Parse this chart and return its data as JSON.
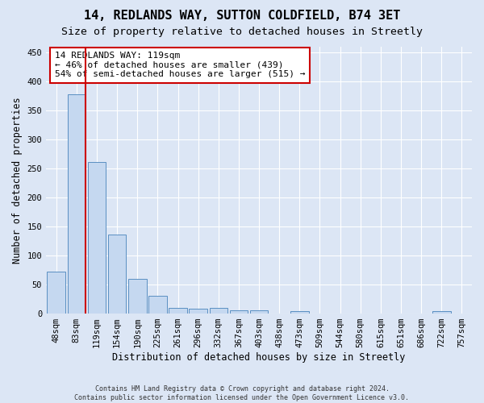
{
  "title": "14, REDLANDS WAY, SUTTON COLDFIELD, B74 3ET",
  "subtitle": "Size of property relative to detached houses in Streetly",
  "xlabel": "Distribution of detached houses by size in Streetly",
  "ylabel": "Number of detached properties",
  "footer_line1": "Contains HM Land Registry data © Crown copyright and database right 2024.",
  "footer_line2": "Contains public sector information licensed under the Open Government Licence v3.0.",
  "bar_labels": [
    "48sqm",
    "83sqm",
    "119sqm",
    "154sqm",
    "190sqm",
    "225sqm",
    "261sqm",
    "296sqm",
    "332sqm",
    "367sqm",
    "403sqm",
    "438sqm",
    "473sqm",
    "509sqm",
    "544sqm",
    "580sqm",
    "615sqm",
    "651sqm",
    "686sqm",
    "722sqm",
    "757sqm"
  ],
  "bar_values": [
    72,
    378,
    261,
    136,
    60,
    30,
    10,
    9,
    10,
    6,
    5,
    0,
    4,
    0,
    0,
    0,
    0,
    0,
    0,
    4,
    0
  ],
  "bar_color": "#c5d8f0",
  "bar_edge_color": "#5a8fc2",
  "vline_x_index": 1,
  "vline_color": "#cc0000",
  "annotation_text": "14 REDLANDS WAY: 119sqm\n← 46% of detached houses are smaller (439)\n54% of semi-detached houses are larger (515) →",
  "annotation_box_color": "#ffffff",
  "annotation_box_edge": "#cc0000",
  "ylim": [
    0,
    460
  ],
  "yticks": [
    0,
    50,
    100,
    150,
    200,
    250,
    300,
    350,
    400,
    450
  ],
  "bg_color": "#dce6f5",
  "plot_bg_color": "#dce6f5",
  "grid_color": "#ffffff",
  "title_fontsize": 11,
  "subtitle_fontsize": 9.5,
  "axis_label_fontsize": 8.5,
  "tick_fontsize": 7.5,
  "annotation_fontsize": 8
}
